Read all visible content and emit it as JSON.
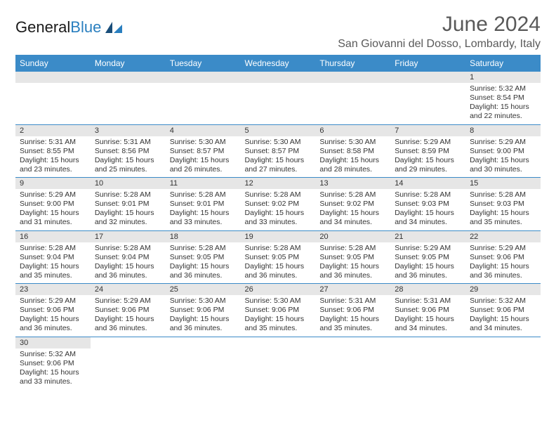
{
  "logo": {
    "part1": "General",
    "part2": "Blue"
  },
  "header": {
    "title": "June 2024",
    "location": "San Giovanni del Dosso, Lombardy, Italy"
  },
  "colors": {
    "header_bg": "#3b8bc8",
    "header_text": "#ffffff",
    "daynum_bg": "#e6e6e6",
    "row_border": "#3b8bc8",
    "title_color": "#595959"
  },
  "dayNames": [
    "Sunday",
    "Monday",
    "Tuesday",
    "Wednesday",
    "Thursday",
    "Friday",
    "Saturday"
  ],
  "weeks": [
    [
      null,
      null,
      null,
      null,
      null,
      null,
      {
        "n": "1",
        "sunrise": "5:32 AM",
        "sunset": "8:54 PM",
        "daylight": "15 hours and 22 minutes."
      }
    ],
    [
      {
        "n": "2",
        "sunrise": "5:31 AM",
        "sunset": "8:55 PM",
        "daylight": "15 hours and 23 minutes."
      },
      {
        "n": "3",
        "sunrise": "5:31 AM",
        "sunset": "8:56 PM",
        "daylight": "15 hours and 25 minutes."
      },
      {
        "n": "4",
        "sunrise": "5:30 AM",
        "sunset": "8:57 PM",
        "daylight": "15 hours and 26 minutes."
      },
      {
        "n": "5",
        "sunrise": "5:30 AM",
        "sunset": "8:57 PM",
        "daylight": "15 hours and 27 minutes."
      },
      {
        "n": "6",
        "sunrise": "5:30 AM",
        "sunset": "8:58 PM",
        "daylight": "15 hours and 28 minutes."
      },
      {
        "n": "7",
        "sunrise": "5:29 AM",
        "sunset": "8:59 PM",
        "daylight": "15 hours and 29 minutes."
      },
      {
        "n": "8",
        "sunrise": "5:29 AM",
        "sunset": "9:00 PM",
        "daylight": "15 hours and 30 minutes."
      }
    ],
    [
      {
        "n": "9",
        "sunrise": "5:29 AM",
        "sunset": "9:00 PM",
        "daylight": "15 hours and 31 minutes."
      },
      {
        "n": "10",
        "sunrise": "5:28 AM",
        "sunset": "9:01 PM",
        "daylight": "15 hours and 32 minutes."
      },
      {
        "n": "11",
        "sunrise": "5:28 AM",
        "sunset": "9:01 PM",
        "daylight": "15 hours and 33 minutes."
      },
      {
        "n": "12",
        "sunrise": "5:28 AM",
        "sunset": "9:02 PM",
        "daylight": "15 hours and 33 minutes."
      },
      {
        "n": "13",
        "sunrise": "5:28 AM",
        "sunset": "9:02 PM",
        "daylight": "15 hours and 34 minutes."
      },
      {
        "n": "14",
        "sunrise": "5:28 AM",
        "sunset": "9:03 PM",
        "daylight": "15 hours and 34 minutes."
      },
      {
        "n": "15",
        "sunrise": "5:28 AM",
        "sunset": "9:03 PM",
        "daylight": "15 hours and 35 minutes."
      }
    ],
    [
      {
        "n": "16",
        "sunrise": "5:28 AM",
        "sunset": "9:04 PM",
        "daylight": "15 hours and 35 minutes."
      },
      {
        "n": "17",
        "sunrise": "5:28 AM",
        "sunset": "9:04 PM",
        "daylight": "15 hours and 36 minutes."
      },
      {
        "n": "18",
        "sunrise": "5:28 AM",
        "sunset": "9:05 PM",
        "daylight": "15 hours and 36 minutes."
      },
      {
        "n": "19",
        "sunrise": "5:28 AM",
        "sunset": "9:05 PM",
        "daylight": "15 hours and 36 minutes."
      },
      {
        "n": "20",
        "sunrise": "5:28 AM",
        "sunset": "9:05 PM",
        "daylight": "15 hours and 36 minutes."
      },
      {
        "n": "21",
        "sunrise": "5:29 AM",
        "sunset": "9:05 PM",
        "daylight": "15 hours and 36 minutes."
      },
      {
        "n": "22",
        "sunrise": "5:29 AM",
        "sunset": "9:06 PM",
        "daylight": "15 hours and 36 minutes."
      }
    ],
    [
      {
        "n": "23",
        "sunrise": "5:29 AM",
        "sunset": "9:06 PM",
        "daylight": "15 hours and 36 minutes."
      },
      {
        "n": "24",
        "sunrise": "5:29 AM",
        "sunset": "9:06 PM",
        "daylight": "15 hours and 36 minutes."
      },
      {
        "n": "25",
        "sunrise": "5:30 AM",
        "sunset": "9:06 PM",
        "daylight": "15 hours and 36 minutes."
      },
      {
        "n": "26",
        "sunrise": "5:30 AM",
        "sunset": "9:06 PM",
        "daylight": "15 hours and 35 minutes."
      },
      {
        "n": "27",
        "sunrise": "5:31 AM",
        "sunset": "9:06 PM",
        "daylight": "15 hours and 35 minutes."
      },
      {
        "n": "28",
        "sunrise": "5:31 AM",
        "sunset": "9:06 PM",
        "daylight": "15 hours and 34 minutes."
      },
      {
        "n": "29",
        "sunrise": "5:32 AM",
        "sunset": "9:06 PM",
        "daylight": "15 hours and 34 minutes."
      }
    ],
    [
      {
        "n": "30",
        "sunrise": "5:32 AM",
        "sunset": "9:06 PM",
        "daylight": "15 hours and 33 minutes."
      },
      null,
      null,
      null,
      null,
      null,
      null
    ]
  ],
  "labels": {
    "sunrise": "Sunrise: ",
    "sunset": "Sunset: ",
    "daylight": "Daylight: "
  }
}
